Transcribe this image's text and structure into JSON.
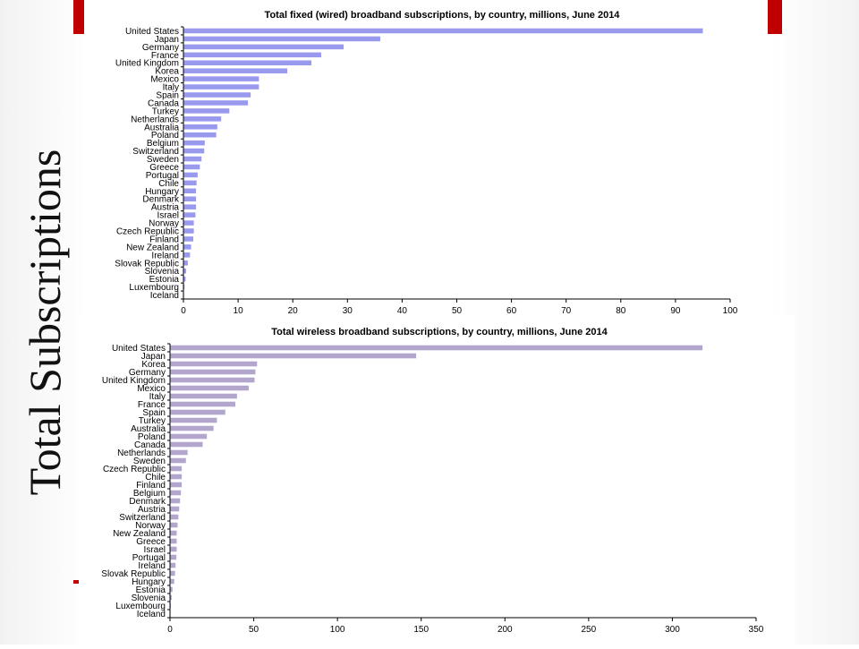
{
  "slide": {
    "title": "Total Subscriptions"
  },
  "chart_data": [
    {
      "type": "bar",
      "orientation": "horizontal",
      "title": "Total  fixed (wired) broadband subscriptions, by country, millions,  June 2014",
      "xlabel": "",
      "ylabel": "",
      "xlim": [
        0,
        100
      ],
      "ticks": [
        0,
        10,
        20,
        30,
        40,
        50,
        60,
        70,
        80,
        90,
        100
      ],
      "grid": false,
      "legend": "none",
      "bar_color": "#9999ee",
      "categories": [
        "United States",
        "Japan",
        "Germany",
        "France",
        "United Kingdom",
        "Korea",
        "Mexico",
        "Italy",
        "Spain",
        "Canada",
        "Turkey",
        "Netherlands",
        "Australia",
        "Poland",
        "Belgium",
        "Switzerland",
        "Sweden",
        "Greece",
        "Portugal",
        "Chile",
        "Hungary",
        "Denmark",
        "Austria",
        "Israel",
        "Norway",
        "Czech Republic",
        "Finland",
        "New Zealand",
        "Ireland",
        "Slovak Republic",
        "Slovenia",
        "Estonia",
        "Luxembourg",
        "Iceland"
      ],
      "values": [
        95,
        36,
        29.3,
        25.2,
        23.4,
        19,
        13.8,
        13.8,
        12.3,
        11.8,
        8.4,
        6.9,
        6.2,
        6,
        3.9,
        3.8,
        3.3,
        3,
        2.6,
        2.4,
        2.3,
        2.3,
        2.3,
        2.2,
        1.9,
        1.9,
        1.8,
        1.4,
        1.2,
        0.8,
        0.5,
        0.4,
        0.2,
        0.1
      ]
    },
    {
      "type": "bar",
      "orientation": "horizontal",
      "title": "Total wireless broadband subscriptions, by country, millions, June 2014",
      "xlabel": "",
      "ylabel": "",
      "xlim": [
        0,
        350
      ],
      "ticks": [
        0,
        50,
        100,
        150,
        200,
        250,
        300,
        350
      ],
      "grid": false,
      "legend": "none",
      "bar_color": "#b3a6cc",
      "categories": [
        "United States",
        "Japan",
        "Korea",
        "Germany",
        "United Kingdom",
        "Mexico",
        "Italy",
        "France",
        "Spain",
        "Turkey",
        "Australia",
        "Poland",
        "Canada",
        "Netherlands",
        "Sweden",
        "Czech Republic",
        "Chile",
        "Finland",
        "Belgium",
        "Denmark",
        "Austria",
        "Switzerland",
        "Norway",
        "New Zealand",
        "Greece",
        "Israel",
        "Portugal",
        "Ireland",
        "Slovak Republic",
        "Hungary",
        "Estonia",
        "Slovenia",
        "Luxembourg",
        "Iceland"
      ],
      "values": [
        318,
        147,
        52,
        51,
        50.5,
        47,
        40,
        39,
        33,
        28,
        26,
        22,
        19.5,
        10.5,
        9.5,
        7,
        7,
        7,
        6.5,
        6,
        5.5,
        5,
        4.5,
        4,
        4,
        4,
        3.8,
        3.3,
        3,
        2.5,
        1.5,
        1,
        0.5,
        0.3
      ]
    }
  ]
}
